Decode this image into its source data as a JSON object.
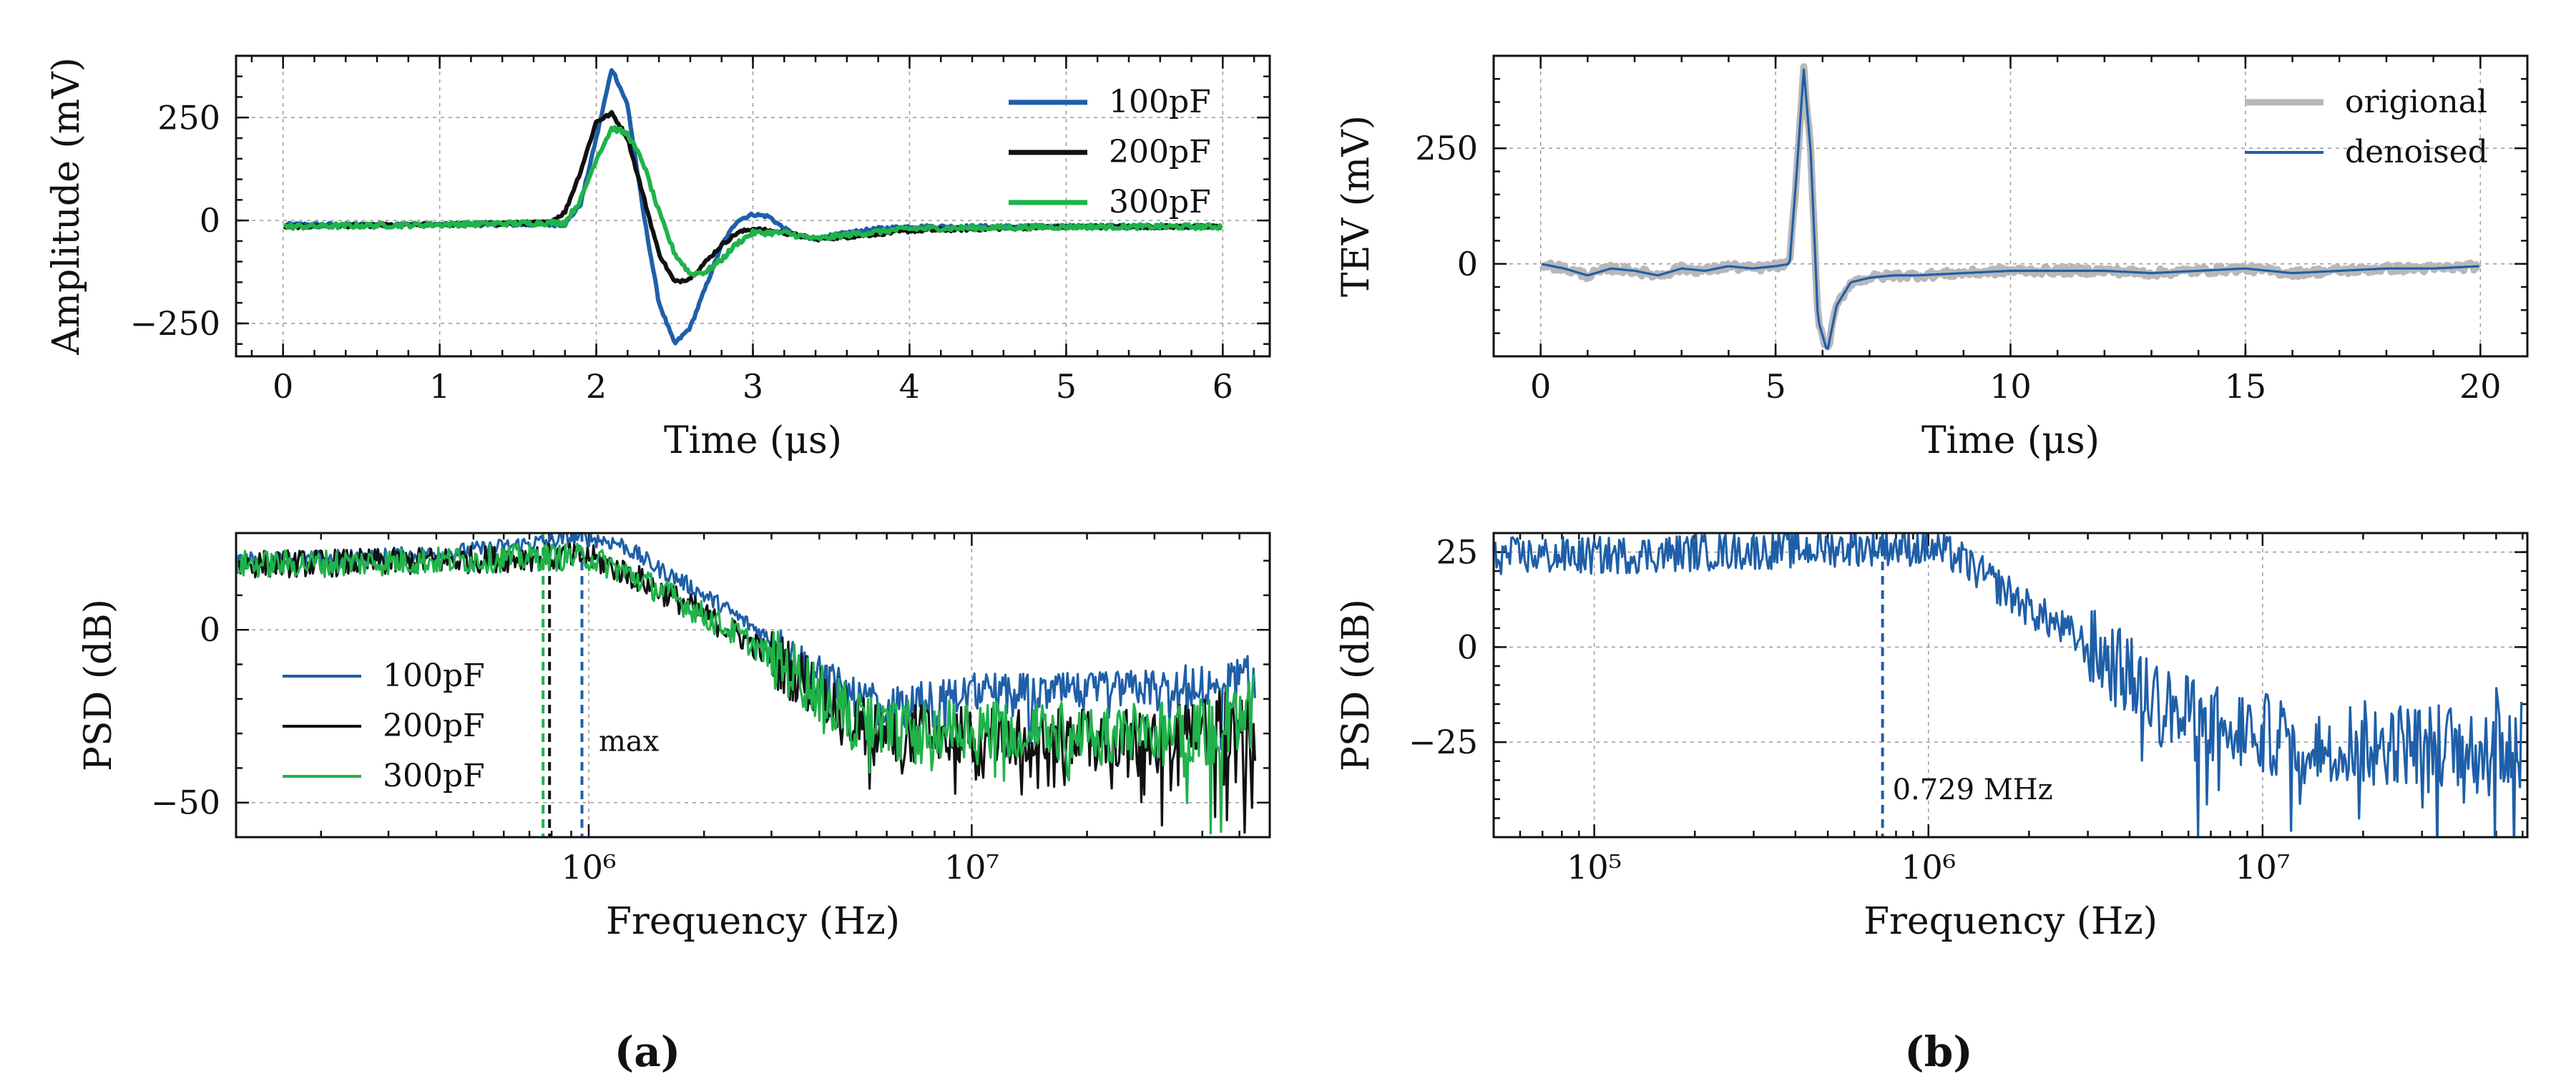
{
  "colors": {
    "blue": "#1f5fa8",
    "black": "#111111",
    "green": "#1fb34a",
    "grey": "#b8b8b8"
  },
  "panel_labels": {
    "a": "(a)",
    "b": "(b)"
  },
  "chart_data": [
    {
      "id": "a-time",
      "type": "line",
      "title": "",
      "xlabel": "Time (μs)",
      "ylabel": "Amplitude (mV)",
      "xlim": [
        -0.3,
        6.3
      ],
      "ylim": [
        -330,
        400
      ],
      "xticks": [
        0,
        1,
        2,
        3,
        4,
        5,
        6
      ],
      "xtick_labels": [
        "0",
        "1",
        "2",
        "3",
        "4",
        "5",
        "6"
      ],
      "yticks": [
        -250,
        0,
        250
      ],
      "ytick_labels": [
        "−250",
        "0",
        "250"
      ],
      "legend_position": "top-right",
      "series": [
        {
          "name": "100pF",
          "color": "#1f5fa8",
          "noise": 4,
          "x": [
            0,
            1,
            1.8,
            1.9,
            2.0,
            2.1,
            2.2,
            2.3,
            2.4,
            2.5,
            2.6,
            2.7,
            2.8,
            2.9,
            3.0,
            3.1,
            3.2,
            3.3,
            3.4,
            3.6,
            3.8,
            4.0,
            5.0,
            6.0
          ],
          "y": [
            -10,
            -10,
            -10,
            40,
            200,
            370,
            280,
            20,
            -200,
            -300,
            -260,
            -160,
            -60,
            0,
            15,
            10,
            -20,
            -40,
            -45,
            -30,
            -20,
            -15,
            -15,
            -15
          ]
        },
        {
          "name": "200pF",
          "color": "#111111",
          "noise": 4,
          "x": [
            0,
            1,
            1.7,
            1.8,
            1.9,
            2.0,
            2.1,
            2.2,
            2.3,
            2.4,
            2.5,
            2.6,
            2.7,
            2.8,
            2.9,
            3.0,
            3.2,
            3.4,
            3.6,
            4.0,
            5.0,
            6.0
          ],
          "y": [
            -15,
            -10,
            -5,
            20,
            120,
            240,
            260,
            200,
            60,
            -80,
            -150,
            -140,
            -100,
            -60,
            -30,
            -20,
            -30,
            -45,
            -40,
            -25,
            -15,
            -15
          ]
        },
        {
          "name": "300pF",
          "color": "#1fb34a",
          "noise": 6,
          "x": [
            0,
            1,
            1.8,
            1.9,
            2.0,
            2.1,
            2.2,
            2.3,
            2.4,
            2.5,
            2.6,
            2.7,
            2.8,
            2.9,
            3.0,
            3.2,
            3.4,
            3.6,
            4.0,
            5.0,
            6.0
          ],
          "y": [
            -15,
            -10,
            -5,
            50,
            150,
            225,
            210,
            140,
            20,
            -80,
            -130,
            -125,
            -95,
            -55,
            -30,
            -30,
            -45,
            -35,
            -20,
            -15,
            -15
          ]
        }
      ]
    },
    {
      "id": "a-psd",
      "type": "line",
      "title": "",
      "xlabel": "Frequency (Hz)",
      "ylabel": "PSD (dB)",
      "xscale": "log",
      "xlim": [
        120000,
        60000000
      ],
      "ylim": [
        -60,
        28
      ],
      "xticks": [
        1000000,
        10000000
      ],
      "xtick_labels": [
        "10⁶",
        "10⁷"
      ],
      "yticks": [
        -50,
        0
      ],
      "ytick_labels": [
        "−50",
        "0"
      ],
      "legend_position": "bottom-left",
      "annotation": {
        "text": "max",
        "x": 1000000,
        "y": -35
      },
      "vlines": [
        {
          "x": 960000,
          "color": "#1f5fa8"
        },
        {
          "x": 790000,
          "color": "#111111"
        },
        {
          "x": 760000,
          "color": "#1fb34a"
        }
      ],
      "series": [
        {
          "name": "100pF",
          "color": "#1f5fa8",
          "noise": 2.5,
          "x": [
            120000,
            400000,
            700000,
            960000,
            1200000,
            1500000,
            2000000,
            2500000,
            3000000,
            4000000,
            5000000,
            6000000,
            10000000,
            20000000,
            40000000,
            55000000
          ],
          "y": [
            20,
            22,
            25,
            27,
            25,
            18,
            10,
            3,
            -3,
            -13,
            -20,
            -22,
            -18,
            -18,
            -15,
            -15
          ]
        },
        {
          "name": "200pF",
          "color": "#111111",
          "noise": 4,
          "x": [
            120000,
            400000,
            700000,
            1000000,
            1500000,
            2000000,
            3000000,
            4000000,
            5000000,
            6000000,
            10000000,
            20000000,
            40000000,
            55000000
          ],
          "y": [
            19,
            20,
            21,
            21,
            12,
            4,
            -8,
            -18,
            -27,
            -30,
            -30,
            -32,
            -30,
            -28
          ]
        },
        {
          "name": "300pF",
          "color": "#1fb34a",
          "noise": 4,
          "x": [
            120000,
            400000,
            700000,
            1000000,
            1500000,
            2000000,
            3000000,
            4000000,
            5000000,
            6000000,
            10000000,
            20000000,
            40000000,
            55000000
          ],
          "y": [
            19,
            20,
            21,
            21,
            12,
            4,
            -8,
            -18,
            -26,
            -29,
            -28,
            -30,
            -28,
            -25
          ]
        }
      ]
    },
    {
      "id": "b-time",
      "type": "line",
      "title": "",
      "xlabel": "Time (μs)",
      "ylabel": "TEV (mV)",
      "xlim": [
        -1,
        21
      ],
      "ylim": [
        -200,
        450
      ],
      "xticks": [
        0,
        5,
        10,
        15,
        20
      ],
      "xtick_labels": [
        "0",
        "5",
        "10",
        "15",
        "20"
      ],
      "yticks": [
        0,
        250
      ],
      "ytick_labels": [
        "0",
        "250"
      ],
      "legend_position": "top-right",
      "series": [
        {
          "name": "origional",
          "color": "#b8b8b8",
          "noise": 8,
          "x": [
            0,
            0.5,
            1,
            1.5,
            2,
            2.5,
            3,
            3.5,
            4,
            4.5,
            5,
            5.3,
            5.45,
            5.6,
            5.75,
            5.9,
            6.1,
            6.3,
            6.6,
            7.0,
            7.5,
            8,
            9,
            10,
            11,
            12,
            13,
            14,
            15,
            16,
            17,
            18,
            19,
            20
          ],
          "y": [
            0,
            -10,
            -25,
            -10,
            -15,
            -25,
            -10,
            -15,
            -5,
            -10,
            -5,
            0,
            200,
            420,
            240,
            -120,
            -190,
            -90,
            -40,
            -30,
            -25,
            -25,
            -20,
            -15,
            -15,
            -15,
            -20,
            -15,
            -10,
            -20,
            -15,
            -10,
            -10,
            -5
          ]
        },
        {
          "name": "denoised",
          "color": "#1f5fa8",
          "noise": 0,
          "x": [
            0,
            0.5,
            1,
            1.5,
            2,
            2.5,
            3,
            3.5,
            4,
            4.5,
            5,
            5.3,
            5.45,
            5.6,
            5.75,
            5.9,
            6.1,
            6.3,
            6.6,
            7.0,
            7.5,
            8,
            9,
            10,
            11,
            12,
            13,
            14,
            15,
            16,
            17,
            18,
            19,
            20
          ],
          "y": [
            0,
            -10,
            -25,
            -10,
            -15,
            -25,
            -10,
            -15,
            -5,
            -10,
            -5,
            0,
            200,
            420,
            240,
            -120,
            -190,
            -90,
            -40,
            -30,
            -25,
            -25,
            -20,
            -15,
            -15,
            -15,
            -20,
            -15,
            -10,
            -20,
            -15,
            -10,
            -10,
            -5
          ]
        }
      ]
    },
    {
      "id": "b-psd",
      "type": "line",
      "title": "",
      "xlabel": "Frequency (Hz)",
      "ylabel": "PSD (dB)",
      "xscale": "log",
      "xlim": [
        50000,
        62000000
      ],
      "ylim": [
        -50,
        30
      ],
      "xticks": [
        100000,
        1000000,
        10000000
      ],
      "xtick_labels": [
        "10⁵",
        "10⁶",
        "10⁷"
      ],
      "yticks": [
        -25,
        0,
        25
      ],
      "ytick_labels": [
        "−25",
        "0",
        "25"
      ],
      "annotation": {
        "text": "0.729 MHz",
        "x": 729000,
        "y": -40
      },
      "vlines": [
        {
          "x": 729000,
          "color": "#1f5fa8"
        }
      ],
      "series": [
        {
          "name": "PSD",
          "color": "#1f5fa8",
          "noise": 5,
          "x": [
            50000,
            100000,
            200000,
            500000,
            729000,
            1000000,
            1200000,
            1500000,
            2000000,
            3000000,
            4000000,
            5000000,
            7000000,
            10000000,
            20000000,
            40000000,
            60000000
          ],
          "y": [
            24,
            24,
            25,
            26,
            26.5,
            26,
            24,
            18,
            10,
            0,
            -8,
            -15,
            -20,
            -23,
            -25,
            -26,
            -24
          ]
        }
      ]
    }
  ]
}
